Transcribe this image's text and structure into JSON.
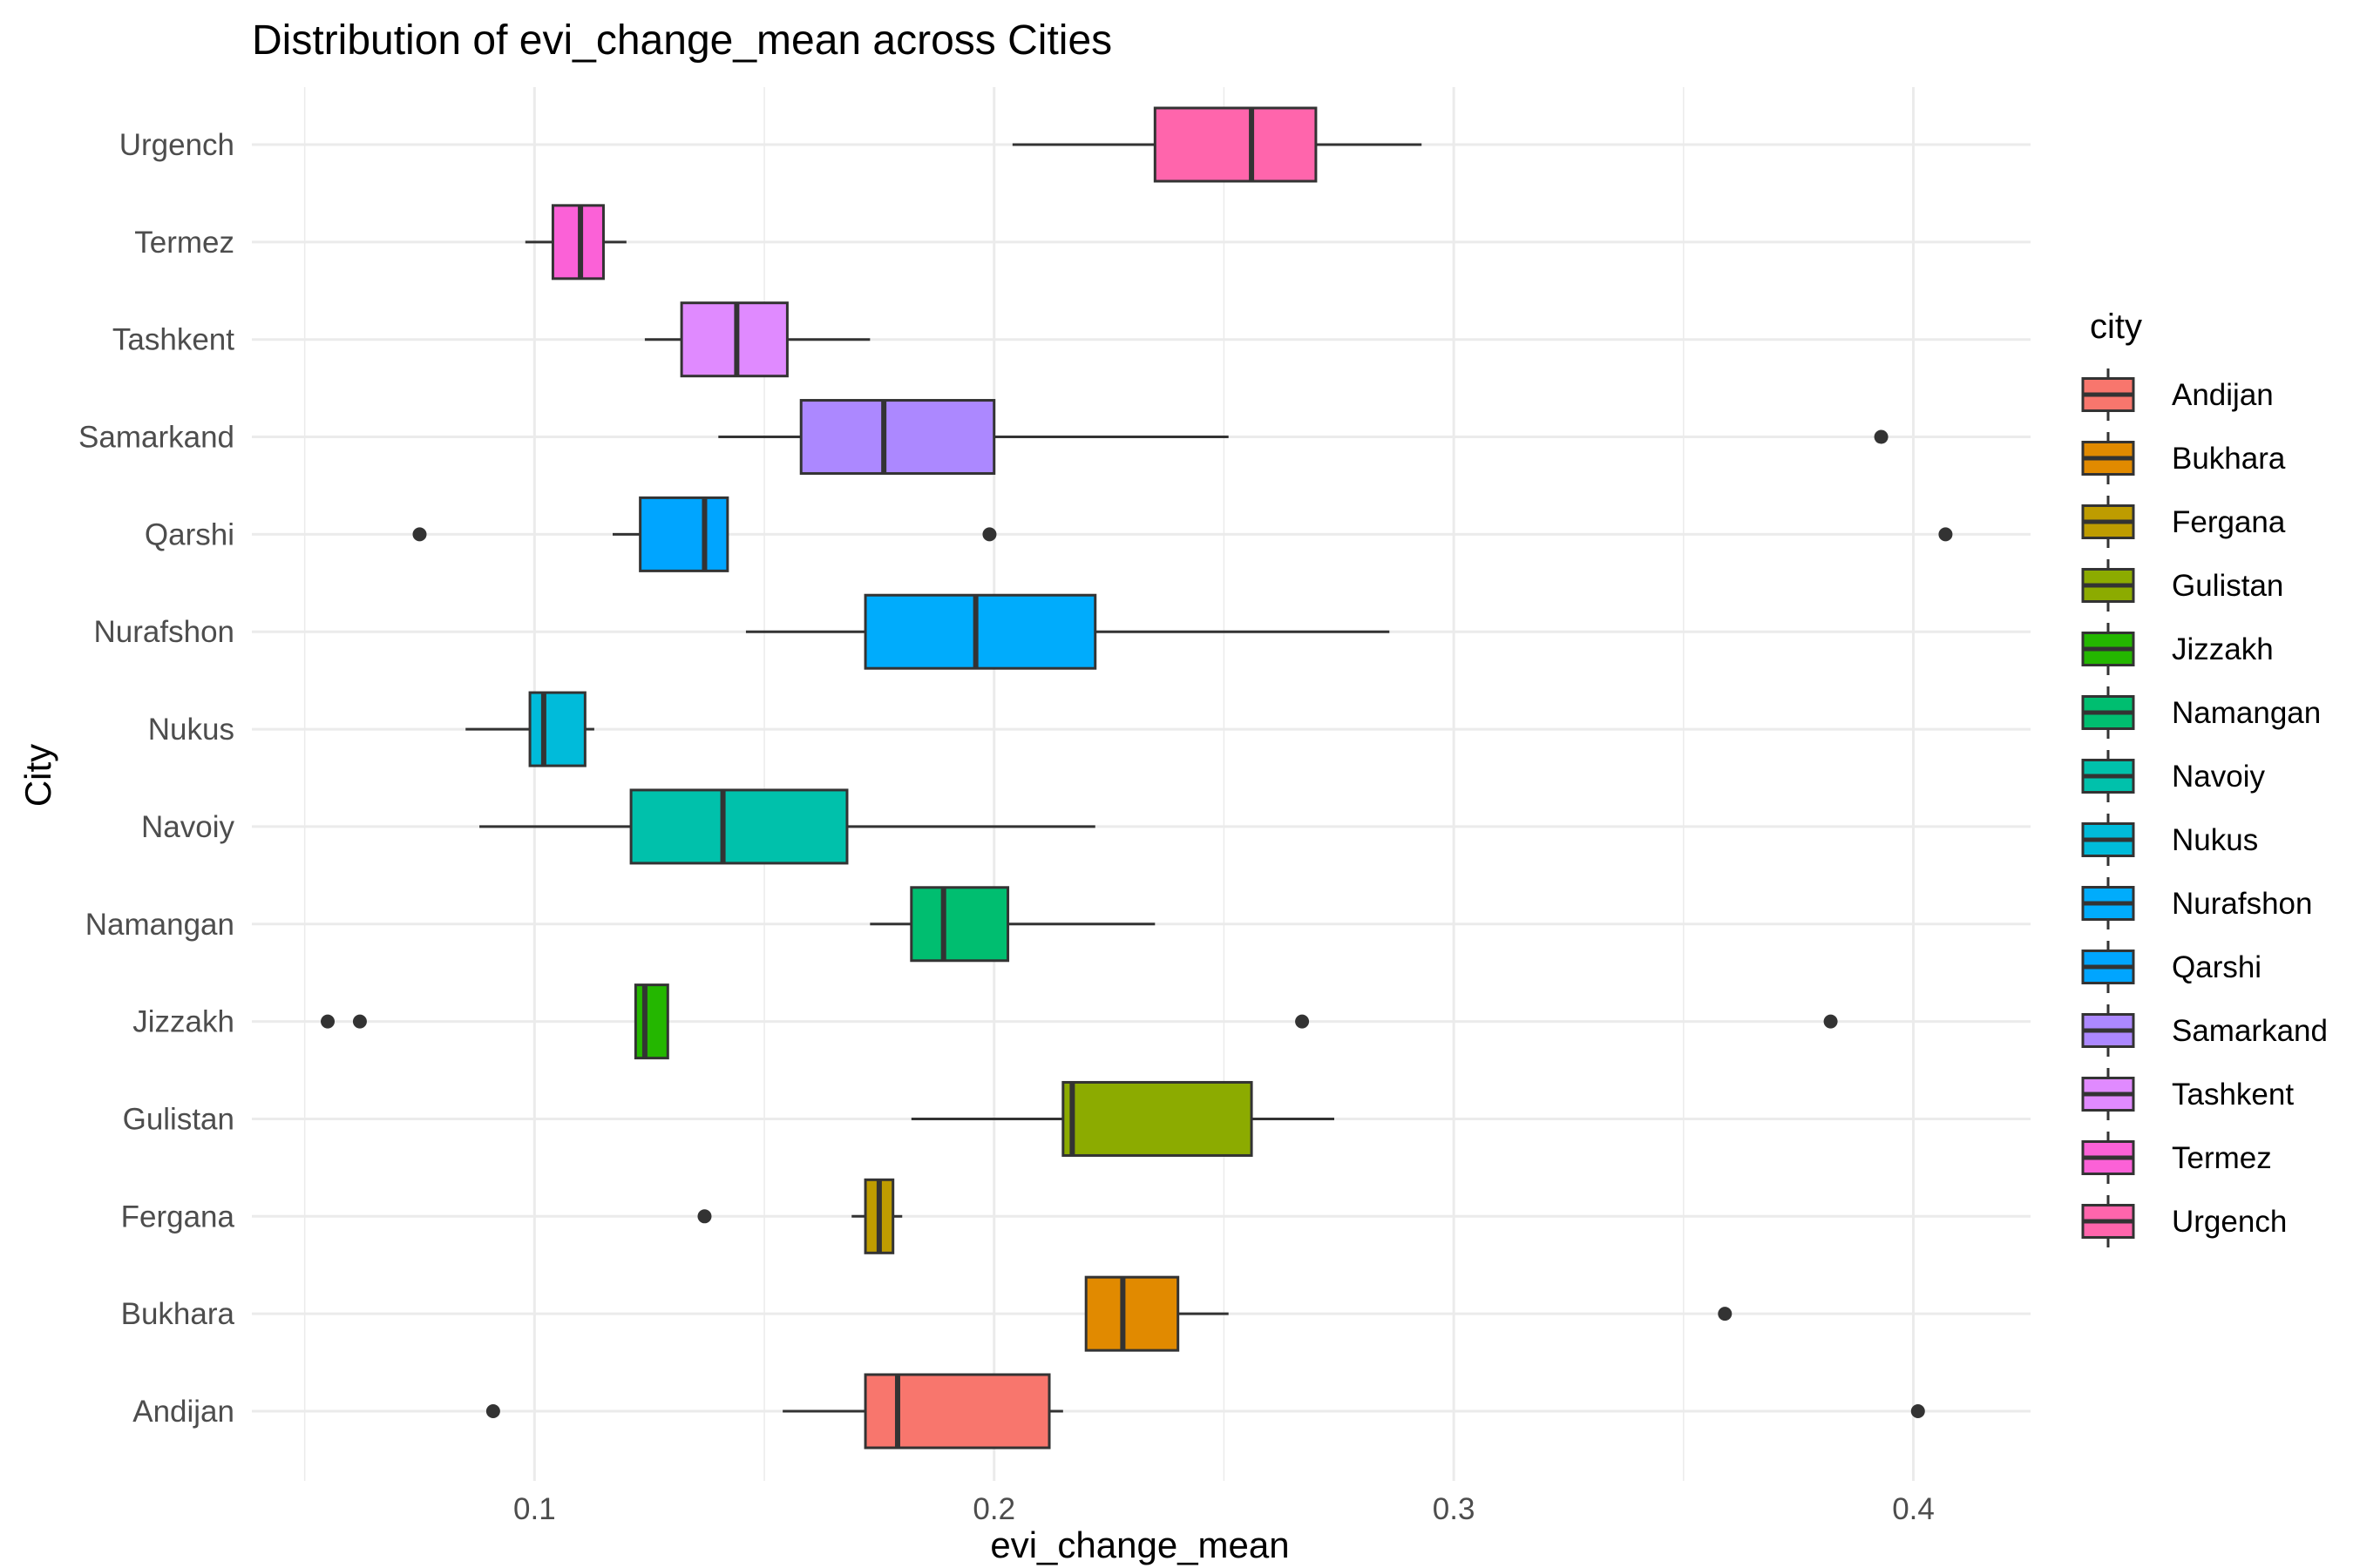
{
  "chart_data": {
    "type": "boxplot",
    "orientation": "horizontal",
    "title": "Distribution of evi_change_mean across Cities",
    "xlabel": "evi_change_mean",
    "ylabel": "City",
    "xlim": [
      0.0385,
      0.4255
    ],
    "x_ticks": [
      0.1,
      0.2,
      0.3,
      0.4
    ],
    "x_tick_labels": [
      "0.1",
      "0.2",
      "0.3",
      "0.4"
    ],
    "x_minor_ticks": [
      0.05,
      0.15,
      0.25,
      0.35
    ],
    "grid": true,
    "legend": {
      "title": "city",
      "position": "right"
    },
    "categories": [
      "Andijan",
      "Bukhara",
      "Fergana",
      "Gulistan",
      "Jizzakh",
      "Namangan",
      "Navoiy",
      "Nukus",
      "Nurafshon",
      "Qarshi",
      "Samarkand",
      "Tashkent",
      "Termez",
      "Urgench"
    ],
    "series": [
      {
        "name": "Andijan",
        "color": "#F8766D",
        "whisker_low": 0.154,
        "q1": 0.172,
        "median": 0.179,
        "q3": 0.212,
        "whisker_high": 0.215,
        "outliers": [
          0.091,
          0.401
        ]
      },
      {
        "name": "Bukhara",
        "color": "#E18A00",
        "whisker_low": 0.22,
        "q1": 0.22,
        "median": 0.228,
        "q3": 0.24,
        "whisker_high": 0.251,
        "outliers": [
          0.359
        ]
      },
      {
        "name": "Fergana",
        "color": "#BE9C00",
        "whisker_low": 0.169,
        "q1": 0.172,
        "median": 0.175,
        "q3": 0.178,
        "whisker_high": 0.18,
        "outliers": [
          0.137
        ]
      },
      {
        "name": "Gulistan",
        "color": "#8CAB00",
        "whisker_low": 0.182,
        "q1": 0.215,
        "median": 0.217,
        "q3": 0.256,
        "whisker_high": 0.274,
        "outliers": []
      },
      {
        "name": "Jizzakh",
        "color": "#24B700",
        "whisker_low": 0.122,
        "q1": 0.122,
        "median": 0.124,
        "q3": 0.129,
        "whisker_high": 0.129,
        "outliers": [
          0.055,
          0.062,
          0.267,
          0.382
        ]
      },
      {
        "name": "Namangan",
        "color": "#00BE70",
        "whisker_low": 0.173,
        "q1": 0.182,
        "median": 0.189,
        "q3": 0.203,
        "whisker_high": 0.235,
        "outliers": []
      },
      {
        "name": "Navoiy",
        "color": "#00C1AB",
        "whisker_low": 0.088,
        "q1": 0.121,
        "median": 0.141,
        "q3": 0.168,
        "whisker_high": 0.222,
        "outliers": []
      },
      {
        "name": "Nukus",
        "color": "#00BBDA",
        "whisker_low": 0.085,
        "q1": 0.099,
        "median": 0.102,
        "q3": 0.111,
        "whisker_high": 0.113,
        "outliers": []
      },
      {
        "name": "Nurafshon",
        "color": "#00ACFC",
        "whisker_low": 0.146,
        "q1": 0.172,
        "median": 0.196,
        "q3": 0.222,
        "whisker_high": 0.286,
        "outliers": []
      },
      {
        "name": "Qarshi",
        "color": "#00A5FF",
        "whisker_low": 0.117,
        "q1": 0.123,
        "median": 0.137,
        "q3": 0.142,
        "whisker_high": 0.142,
        "outliers": [
          0.075,
          0.199,
          0.407
        ]
      },
      {
        "name": "Samarkand",
        "color": "#AC88FF",
        "whisker_low": 0.14,
        "q1": 0.158,
        "median": 0.176,
        "q3": 0.2,
        "whisker_high": 0.251,
        "outliers": [
          0.393
        ]
      },
      {
        "name": "Tashkent",
        "color": "#E08AFF",
        "whisker_low": 0.124,
        "q1": 0.132,
        "median": 0.144,
        "q3": 0.155,
        "whisker_high": 0.173,
        "outliers": []
      },
      {
        "name": "Termez",
        "color": "#FB61D7",
        "whisker_low": 0.098,
        "q1": 0.104,
        "median": 0.11,
        "q3": 0.115,
        "whisker_high": 0.12,
        "outliers": []
      },
      {
        "name": "Urgench",
        "color": "#FF65AC",
        "whisker_low": 0.204,
        "q1": 0.235,
        "median": 0.256,
        "q3": 0.27,
        "whisker_high": 0.293,
        "outliers": []
      }
    ]
  }
}
